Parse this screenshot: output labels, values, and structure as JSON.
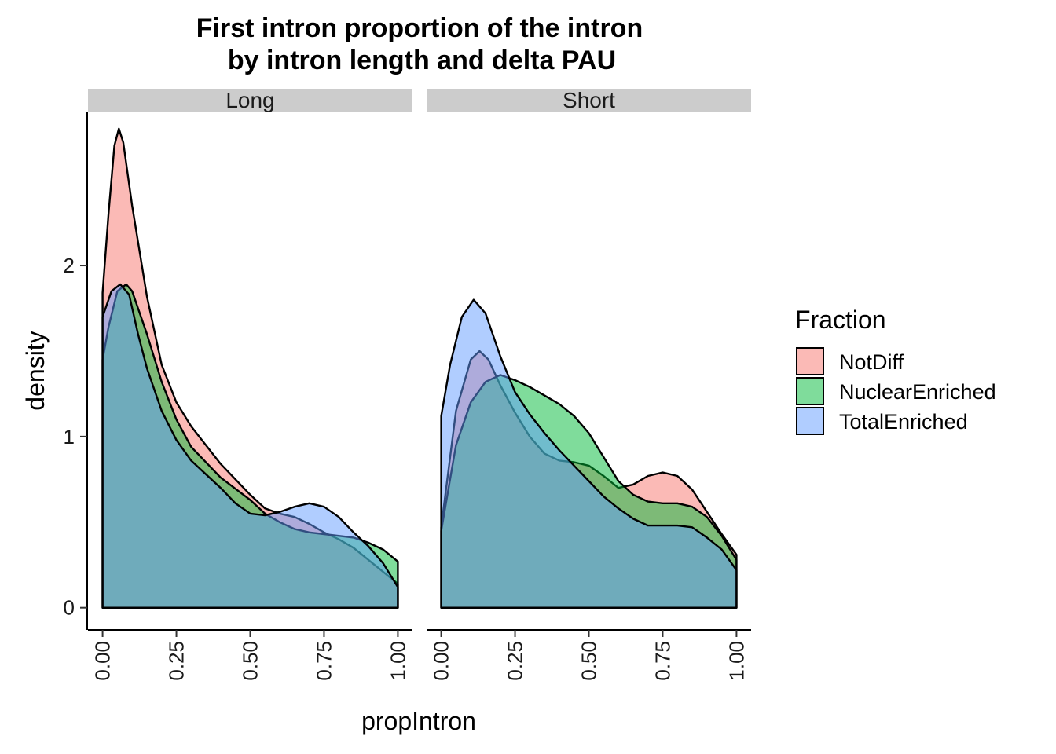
{
  "chart_data": {
    "type": "area",
    "title_lines": [
      "First intron proportion of the intron",
      "by intron length and delta PAU"
    ],
    "xlabel": "propIntron",
    "ylabel": "density",
    "xlim": [
      0,
      1
    ],
    "ylim": [
      -0.13,
      2.9
    ],
    "x_ticks": [
      "0.00",
      "0.25",
      "0.50",
      "0.75",
      "1.00"
    ],
    "y_ticks": [
      "0",
      "1",
      "2"
    ],
    "legend": {
      "title": "Fraction",
      "position": "right"
    },
    "fill_alpha": 0.5,
    "series_meta": [
      {
        "name": "NotDiff",
        "color": "#F8766D"
      },
      {
        "name": "NuclearEnriched",
        "color": "#00BA38"
      },
      {
        "name": "TotalEnriched",
        "color": "#619CFF"
      }
    ],
    "panels": [
      {
        "label": "Long",
        "series": [
          {
            "name": "NotDiff",
            "points": [
              [
                0,
                1.84
              ],
              [
                0.02,
                2.3
              ],
              [
                0.04,
                2.7
              ],
              [
                0.055,
                2.8
              ],
              [
                0.07,
                2.72
              ],
              [
                0.1,
                2.35
              ],
              [
                0.15,
                1.82
              ],
              [
                0.2,
                1.42
              ],
              [
                0.25,
                1.2
              ],
              [
                0.3,
                1.06
              ],
              [
                0.4,
                0.84
              ],
              [
                0.5,
                0.66
              ],
              [
                0.55,
                0.58
              ],
              [
                0.6,
                0.55
              ],
              [
                0.65,
                0.53
              ],
              [
                0.7,
                0.49
              ],
              [
                0.75,
                0.44
              ],
              [
                0.8,
                0.4
              ],
              [
                0.85,
                0.35
              ],
              [
                0.9,
                0.28
              ],
              [
                0.95,
                0.21
              ],
              [
                1.0,
                0.14
              ]
            ]
          },
          {
            "name": "NuclearEnriched",
            "points": [
              [
                0,
                1.45
              ],
              [
                0.02,
                1.64
              ],
              [
                0.05,
                1.85
              ],
              [
                0.08,
                1.89
              ],
              [
                0.1,
                1.85
              ],
              [
                0.15,
                1.6
              ],
              [
                0.2,
                1.32
              ],
              [
                0.25,
                1.1
              ],
              [
                0.3,
                0.94
              ],
              [
                0.4,
                0.76
              ],
              [
                0.5,
                0.63
              ],
              [
                0.55,
                0.55
              ],
              [
                0.6,
                0.5
              ],
              [
                0.65,
                0.46
              ],
              [
                0.7,
                0.44
              ],
              [
                0.75,
                0.43
              ],
              [
                0.8,
                0.42
              ],
              [
                0.85,
                0.41
              ],
              [
                0.9,
                0.38
              ],
              [
                0.95,
                0.34
              ],
              [
                1.0,
                0.27
              ]
            ]
          },
          {
            "name": "TotalEnriched",
            "points": [
              [
                0,
                1.7
              ],
              [
                0.03,
                1.85
              ],
              [
                0.06,
                1.89
              ],
              [
                0.09,
                1.83
              ],
              [
                0.12,
                1.6
              ],
              [
                0.15,
                1.4
              ],
              [
                0.2,
                1.15
              ],
              [
                0.25,
                0.98
              ],
              [
                0.3,
                0.86
              ],
              [
                0.4,
                0.7
              ],
              [
                0.45,
                0.61
              ],
              [
                0.5,
                0.55
              ],
              [
                0.55,
                0.54
              ],
              [
                0.6,
                0.56
              ],
              [
                0.65,
                0.59
              ],
              [
                0.7,
                0.61
              ],
              [
                0.75,
                0.59
              ],
              [
                0.8,
                0.53
              ],
              [
                0.85,
                0.44
              ],
              [
                0.9,
                0.36
              ],
              [
                0.95,
                0.26
              ],
              [
                1.0,
                0.12
              ]
            ]
          }
        ]
      },
      {
        "label": "Short",
        "series": [
          {
            "name": "NotDiff",
            "points": [
              [
                0,
                0.47
              ],
              [
                0.05,
                1.15
              ],
              [
                0.1,
                1.45
              ],
              [
                0.13,
                1.5
              ],
              [
                0.16,
                1.45
              ],
              [
                0.2,
                1.3
              ],
              [
                0.25,
                1.14
              ],
              [
                0.3,
                1.0
              ],
              [
                0.35,
                0.9
              ],
              [
                0.4,
                0.86
              ],
              [
                0.45,
                0.85
              ],
              [
                0.5,
                0.83
              ],
              [
                0.55,
                0.77
              ],
              [
                0.6,
                0.7
              ],
              [
                0.65,
                0.72
              ],
              [
                0.7,
                0.77
              ],
              [
                0.75,
                0.79
              ],
              [
                0.8,
                0.77
              ],
              [
                0.85,
                0.69
              ],
              [
                0.9,
                0.56
              ],
              [
                0.95,
                0.43
              ],
              [
                1.0,
                0.31
              ]
            ]
          },
          {
            "name": "NuclearEnriched",
            "points": [
              [
                0,
                0.45
              ],
              [
                0.05,
                0.95
              ],
              [
                0.1,
                1.2
              ],
              [
                0.15,
                1.32
              ],
              [
                0.2,
                1.36
              ],
              [
                0.25,
                1.33
              ],
              [
                0.3,
                1.29
              ],
              [
                0.35,
                1.24
              ],
              [
                0.4,
                1.19
              ],
              [
                0.45,
                1.12
              ],
              [
                0.5,
                1.02
              ],
              [
                0.55,
                0.88
              ],
              [
                0.6,
                0.74
              ],
              [
                0.65,
                0.66
              ],
              [
                0.7,
                0.62
              ],
              [
                0.75,
                0.61
              ],
              [
                0.8,
                0.61
              ],
              [
                0.85,
                0.59
              ],
              [
                0.9,
                0.53
              ],
              [
                0.95,
                0.42
              ],
              [
                1.0,
                0.28
              ]
            ]
          },
          {
            "name": "TotalEnriched",
            "points": [
              [
                0,
                1.12
              ],
              [
                0.03,
                1.42
              ],
              [
                0.07,
                1.7
              ],
              [
                0.11,
                1.8
              ],
              [
                0.15,
                1.72
              ],
              [
                0.2,
                1.47
              ],
              [
                0.25,
                1.26
              ],
              [
                0.3,
                1.13
              ],
              [
                0.35,
                1.02
              ],
              [
                0.4,
                0.92
              ],
              [
                0.45,
                0.83
              ],
              [
                0.5,
                0.74
              ],
              [
                0.55,
                0.65
              ],
              [
                0.6,
                0.58
              ],
              [
                0.65,
                0.52
              ],
              [
                0.7,
                0.48
              ],
              [
                0.75,
                0.48
              ],
              [
                0.8,
                0.48
              ],
              [
                0.85,
                0.47
              ],
              [
                0.9,
                0.41
              ],
              [
                0.95,
                0.34
              ],
              [
                1.0,
                0.22
              ]
            ]
          }
        ]
      }
    ]
  }
}
